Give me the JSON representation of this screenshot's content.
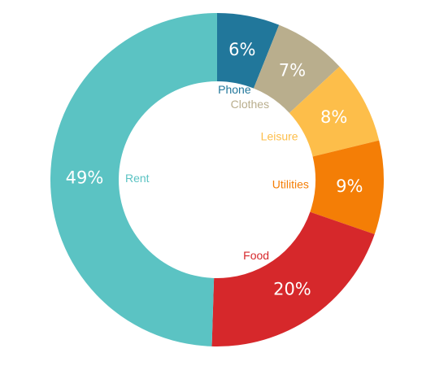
{
  "chart_data": {
    "type": "pie",
    "variant": "donut",
    "title": "",
    "legend": "none",
    "slices": [
      {
        "label": "Phone",
        "value": 6,
        "display": "6%",
        "color": "#21779b"
      },
      {
        "label": "Clothes",
        "value": 7,
        "display": "7%",
        "color": "#b9ae8d"
      },
      {
        "label": "Leisure",
        "value": 8,
        "display": "8%",
        "color": "#fdbe4a"
      },
      {
        "label": "Utilities",
        "value": 9,
        "display": "9%",
        "color": "#f47e06"
      },
      {
        "label": "Food",
        "value": 20,
        "display": "20%",
        "color": "#d6282b"
      },
      {
        "label": "Rent",
        "value": 49,
        "display": "49%",
        "color": "#5bc3c3"
      }
    ]
  }
}
